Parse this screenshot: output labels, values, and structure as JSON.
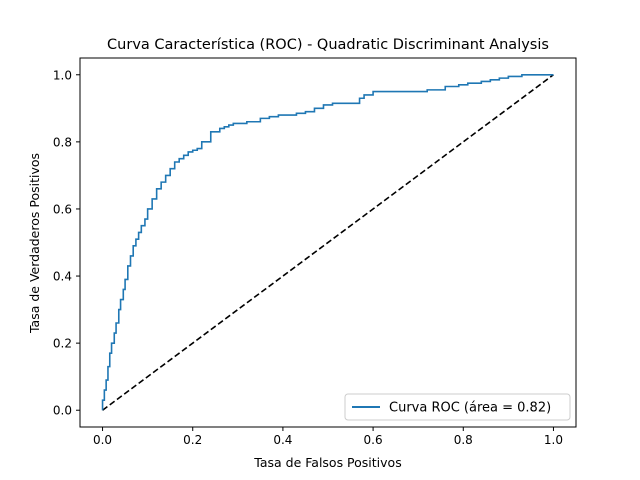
{
  "chart_data": {
    "type": "line",
    "title": "Curva Característica (ROC) - Quadratic Discriminant Analysis",
    "xlabel": "Tasa de Falsos Positivos",
    "ylabel": "Tasa de Verdaderos Positivos",
    "xlim": [
      -0.05,
      1.05
    ],
    "ylim": [
      -0.05,
      1.05
    ],
    "xticks": [
      "0.0",
      "0.2",
      "0.4",
      "0.6",
      "0.8",
      "1.0"
    ],
    "yticks": [
      "0.0",
      "0.2",
      "0.4",
      "0.6",
      "0.8",
      "1.0"
    ],
    "grid": false,
    "legend_position": "lower-right",
    "series": [
      {
        "name": "Curva ROC (área = 0.82)",
        "color": "#1f77b4",
        "style": "solid",
        "x": [
          0.0,
          0.0,
          0.004,
          0.004,
          0.008,
          0.008,
          0.012,
          0.012,
          0.016,
          0.016,
          0.02,
          0.02,
          0.026,
          0.026,
          0.03,
          0.03,
          0.036,
          0.036,
          0.04,
          0.04,
          0.046,
          0.046,
          0.05,
          0.05,
          0.056,
          0.056,
          0.062,
          0.062,
          0.068,
          0.068,
          0.074,
          0.074,
          0.08,
          0.08,
          0.086,
          0.086,
          0.094,
          0.094,
          0.1,
          0.1,
          0.11,
          0.11,
          0.12,
          0.12,
          0.13,
          0.13,
          0.14,
          0.14,
          0.15,
          0.15,
          0.16,
          0.16,
          0.17,
          0.17,
          0.18,
          0.18,
          0.19,
          0.19,
          0.2,
          0.2,
          0.21,
          0.21,
          0.22,
          0.22,
          0.24,
          0.24,
          0.26,
          0.26,
          0.27,
          0.27,
          0.28,
          0.28,
          0.29,
          0.29,
          0.32,
          0.32,
          0.35,
          0.35,
          0.37,
          0.37,
          0.39,
          0.39,
          0.43,
          0.43,
          0.45,
          0.45,
          0.47,
          0.47,
          0.49,
          0.49,
          0.51,
          0.51,
          0.57,
          0.57,
          0.58,
          0.58,
          0.6,
          0.6,
          0.72,
          0.72,
          0.76,
          0.76,
          0.79,
          0.79,
          0.81,
          0.81,
          0.84,
          0.84,
          0.86,
          0.86,
          0.88,
          0.88,
          0.9,
          0.9,
          0.93,
          0.93,
          1.0
        ],
        "y": [
          0.0,
          0.03,
          0.03,
          0.06,
          0.06,
          0.09,
          0.09,
          0.13,
          0.13,
          0.17,
          0.17,
          0.2,
          0.2,
          0.23,
          0.23,
          0.26,
          0.26,
          0.3,
          0.3,
          0.33,
          0.33,
          0.36,
          0.36,
          0.39,
          0.39,
          0.43,
          0.43,
          0.46,
          0.46,
          0.49,
          0.49,
          0.51,
          0.51,
          0.53,
          0.53,
          0.55,
          0.55,
          0.57,
          0.57,
          0.6,
          0.6,
          0.63,
          0.63,
          0.66,
          0.66,
          0.68,
          0.68,
          0.7,
          0.7,
          0.72,
          0.72,
          0.74,
          0.74,
          0.75,
          0.75,
          0.76,
          0.76,
          0.77,
          0.77,
          0.775,
          0.775,
          0.78,
          0.78,
          0.8,
          0.8,
          0.83,
          0.83,
          0.84,
          0.84,
          0.845,
          0.845,
          0.85,
          0.85,
          0.855,
          0.855,
          0.86,
          0.86,
          0.87,
          0.87,
          0.875,
          0.875,
          0.88,
          0.88,
          0.885,
          0.885,
          0.89,
          0.89,
          0.9,
          0.9,
          0.91,
          0.91,
          0.915,
          0.915,
          0.93,
          0.93,
          0.94,
          0.94,
          0.95,
          0.95,
          0.955,
          0.955,
          0.965,
          0.965,
          0.97,
          0.97,
          0.975,
          0.975,
          0.98,
          0.98,
          0.985,
          0.985,
          0.99,
          0.99,
          0.995,
          0.995,
          1.0,
          1.0
        ]
      },
      {
        "name": "",
        "color": "#000000",
        "style": "dashed",
        "x": [
          0,
          1
        ],
        "y": [
          0,
          1
        ]
      }
    ]
  }
}
